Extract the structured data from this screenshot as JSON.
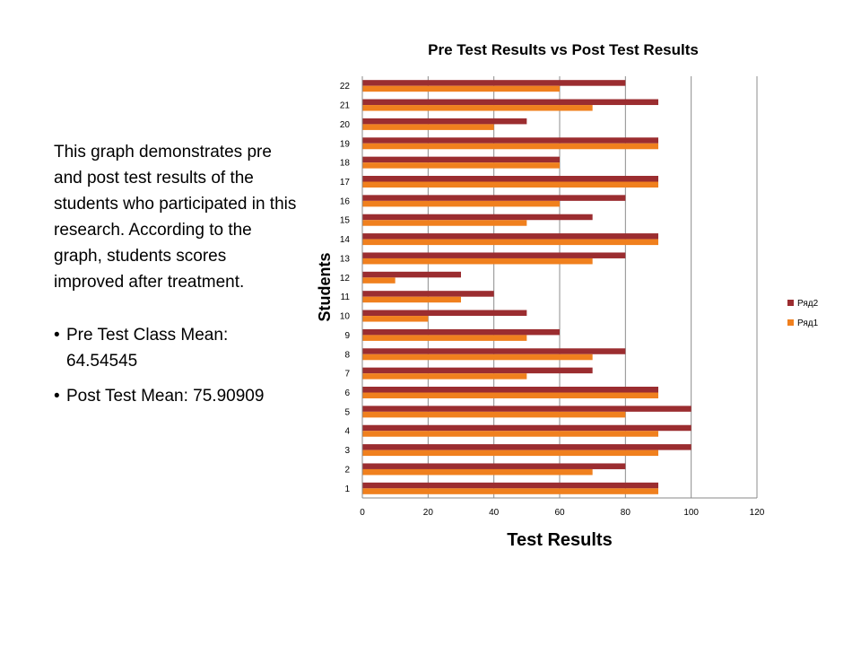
{
  "slide": {
    "paragraph": "This graph demonstrates pre and post test results of the students who participated in this research.  According to the graph, students scores improved  after treatment.",
    "bullets": [
      "Pre Test Class Mean: 64.54545",
      "Post Test Mean: 75.90909"
    ]
  },
  "colors": {
    "series_ryad2": "#9b2d30",
    "series_ryad1": "#f0801e",
    "grid": "#8c8c8c",
    "axis": "#888888"
  },
  "chart_data": {
    "type": "bar",
    "orientation": "horizontal",
    "title": "Pre Test Results vs Post Test Results",
    "xlabel": "Test Results",
    "ylabel": "Students",
    "xlim": [
      0,
      120
    ],
    "xticks": [
      0,
      20,
      40,
      60,
      80,
      100,
      120
    ],
    "grid": true,
    "legend_position": "right",
    "categories": [
      "1",
      "2",
      "3",
      "4",
      "5",
      "6",
      "7",
      "8",
      "9",
      "10",
      "11",
      "12",
      "13",
      "14",
      "15",
      "16",
      "17",
      "18",
      "19",
      "20",
      "21",
      "22"
    ],
    "series": [
      {
        "name": "Ряд2",
        "values": [
          90,
          80,
          100,
          100,
          100,
          90,
          70,
          80,
          60,
          50,
          40,
          30,
          80,
          90,
          70,
          80,
          90,
          60,
          90,
          50,
          90,
          80
        ]
      },
      {
        "name": "Ряд1",
        "values": [
          90,
          70,
          90,
          90,
          80,
          90,
          50,
          70,
          50,
          20,
          30,
          10,
          70,
          90,
          50,
          60,
          90,
          60,
          90,
          40,
          70,
          60
        ]
      }
    ]
  }
}
